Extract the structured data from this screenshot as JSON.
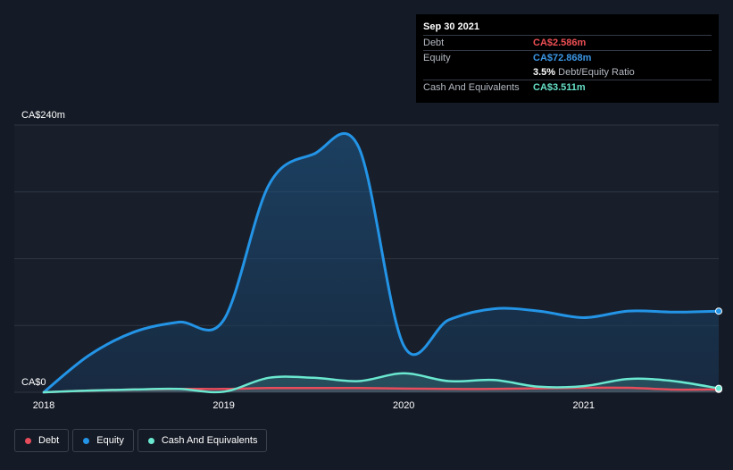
{
  "tooltip": {
    "date": "Sep 30 2021",
    "debt_label": "Debt",
    "debt_value": "CA$2.586m",
    "equity_label": "Equity",
    "equity_value": "CA$72.868m",
    "ratio_value": "3.5%",
    "ratio_label": "Debt/Equity Ratio",
    "cash_label": "Cash And Equivalents",
    "cash_value": "CA$3.511m"
  },
  "colors": {
    "debt": "#e64c5b",
    "equity": "#2394e6",
    "cash": "#6ae8d0",
    "tt_debt": "#ee4f55",
    "tt_equity": "#3b97e6",
    "tt_cash": "#66e0c8"
  },
  "legend": [
    {
      "label": "Debt",
      "color": "#e64c5b"
    },
    {
      "label": "Equity",
      "color": "#2394e6"
    },
    {
      "label": "Cash And Equivalents",
      "color": "#6ae8d0"
    }
  ],
  "chart_data": {
    "type": "area",
    "title": "",
    "xlabel": "",
    "ylabel": "",
    "ylim": [
      0,
      240
    ],
    "xlim": [
      2018.0,
      2021.75
    ],
    "y_ticks": [
      {
        "value": 240,
        "label": "CA$240m"
      },
      {
        "value": 0,
        "label": "CA$0"
      }
    ],
    "x_ticks": [
      {
        "value": 2018,
        "label": "2018"
      },
      {
        "value": 2019,
        "label": "2019"
      },
      {
        "value": 2020,
        "label": "2020"
      },
      {
        "value": 2021,
        "label": "2021"
      }
    ],
    "grid": true,
    "legend_position": "bottom-left",
    "series": [
      {
        "name": "Equity",
        "key": "equity",
        "points": [
          [
            2018.0,
            0
          ],
          [
            2018.25,
            33
          ],
          [
            2018.5,
            54
          ],
          [
            2018.75,
            63
          ],
          [
            2019.0,
            65
          ],
          [
            2019.25,
            186
          ],
          [
            2019.5,
            214
          ],
          [
            2019.75,
            220
          ],
          [
            2020.0,
            42
          ],
          [
            2020.25,
            65
          ],
          [
            2020.5,
            75
          ],
          [
            2020.75,
            73
          ],
          [
            2021.0,
            67
          ],
          [
            2021.25,
            73
          ],
          [
            2021.5,
            72
          ],
          [
            2021.75,
            72.868
          ]
        ]
      },
      {
        "name": "Debt",
        "key": "debt",
        "points": [
          [
            2018.0,
            0
          ],
          [
            2018.25,
            1.5
          ],
          [
            2018.5,
            2.5
          ],
          [
            2018.75,
            3
          ],
          [
            2019.0,
            3
          ],
          [
            2019.25,
            3.8
          ],
          [
            2019.5,
            3.8
          ],
          [
            2019.75,
            3.8
          ],
          [
            2020.0,
            3.3
          ],
          [
            2020.25,
            3
          ],
          [
            2020.5,
            3
          ],
          [
            2020.75,
            3.5
          ],
          [
            2021.0,
            4
          ],
          [
            2021.25,
            4
          ],
          [
            2021.5,
            2.4
          ],
          [
            2021.75,
            2.586
          ]
        ]
      },
      {
        "name": "Cash And Equivalents",
        "key": "cash",
        "points": [
          [
            2018.0,
            0
          ],
          [
            2018.25,
            1.5
          ],
          [
            2018.5,
            2.5
          ],
          [
            2018.75,
            3
          ],
          [
            2019.0,
            0.5
          ],
          [
            2019.25,
            13
          ],
          [
            2019.5,
            13
          ],
          [
            2019.75,
            10
          ],
          [
            2020.0,
            17
          ],
          [
            2020.25,
            10
          ],
          [
            2020.5,
            11
          ],
          [
            2020.75,
            5
          ],
          [
            2021.0,
            5.5
          ],
          [
            2021.25,
            12
          ],
          [
            2021.5,
            10
          ],
          [
            2021.75,
            3.511
          ]
        ]
      }
    ]
  }
}
